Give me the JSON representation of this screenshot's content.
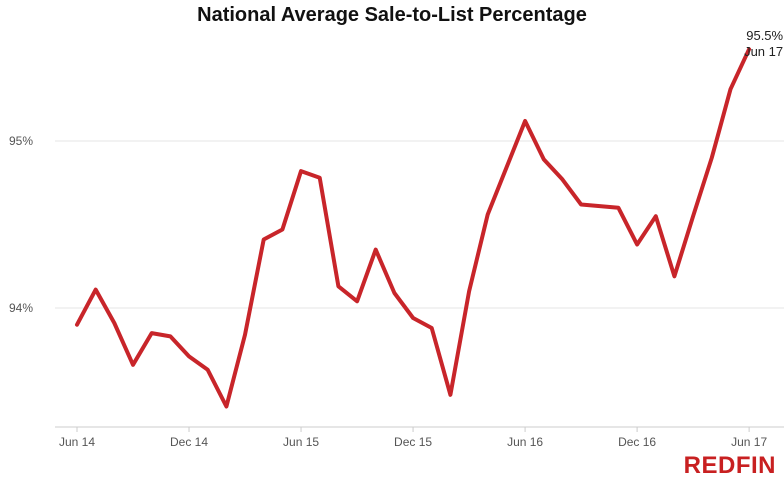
{
  "chart_data": {
    "type": "line",
    "title": "National Average Sale-to-List Percentage",
    "xlabel": "",
    "ylabel": "",
    "x_ticks": [
      "Jun 14",
      "Dec 14",
      "Jun 15",
      "Dec 15",
      "Jun 16",
      "Dec 16",
      "Jun 17"
    ],
    "y_ticks": [
      {
        "value": 94,
        "label": "94%"
      },
      {
        "value": 95,
        "label": "95%"
      }
    ],
    "ylim": [
      93.35,
      95.85
    ],
    "grid": true,
    "series": [
      {
        "color": "#c8252a",
        "x": [
          "Jun 14",
          "Jul 14",
          "Aug 14",
          "Sep 14",
          "Oct 14",
          "Nov 14",
          "Dec 14",
          "Jan 15",
          "Feb 15",
          "Mar 15",
          "Apr 15",
          "May 15",
          "Jun 15",
          "Jul 15",
          "Aug 15",
          "Sep 15",
          "Oct 15",
          "Nov 15",
          "Dec 15",
          "Jan 16",
          "Feb 16",
          "Mar 16",
          "Apr 16",
          "May 16",
          "Jun 16",
          "Jul 16",
          "Aug 16",
          "Sep 16",
          "Oct 16",
          "Nov 16",
          "Dec 16",
          "Jan 17",
          "Feb 17",
          "Mar 17",
          "Apr 17",
          "May 17",
          "Jun 17"
        ],
        "values": [
          93.9,
          94.11,
          93.91,
          93.66,
          93.85,
          93.83,
          93.71,
          93.63,
          93.41,
          93.84,
          94.41,
          94.47,
          94.82,
          94.78,
          94.13,
          94.04,
          94.35,
          94.09,
          93.94,
          93.88,
          93.48,
          94.1,
          94.56,
          94.84,
          95.12,
          94.89,
          94.77,
          94.62,
          94.61,
          94.6,
          94.38,
          94.55,
          94.19,
          94.55,
          94.9,
          95.31,
          95.55
        ]
      }
    ],
    "end_annotation": {
      "value": "95.5%",
      "date": "Jun 17"
    }
  },
  "brand": {
    "logo_text": "REDFIN"
  }
}
